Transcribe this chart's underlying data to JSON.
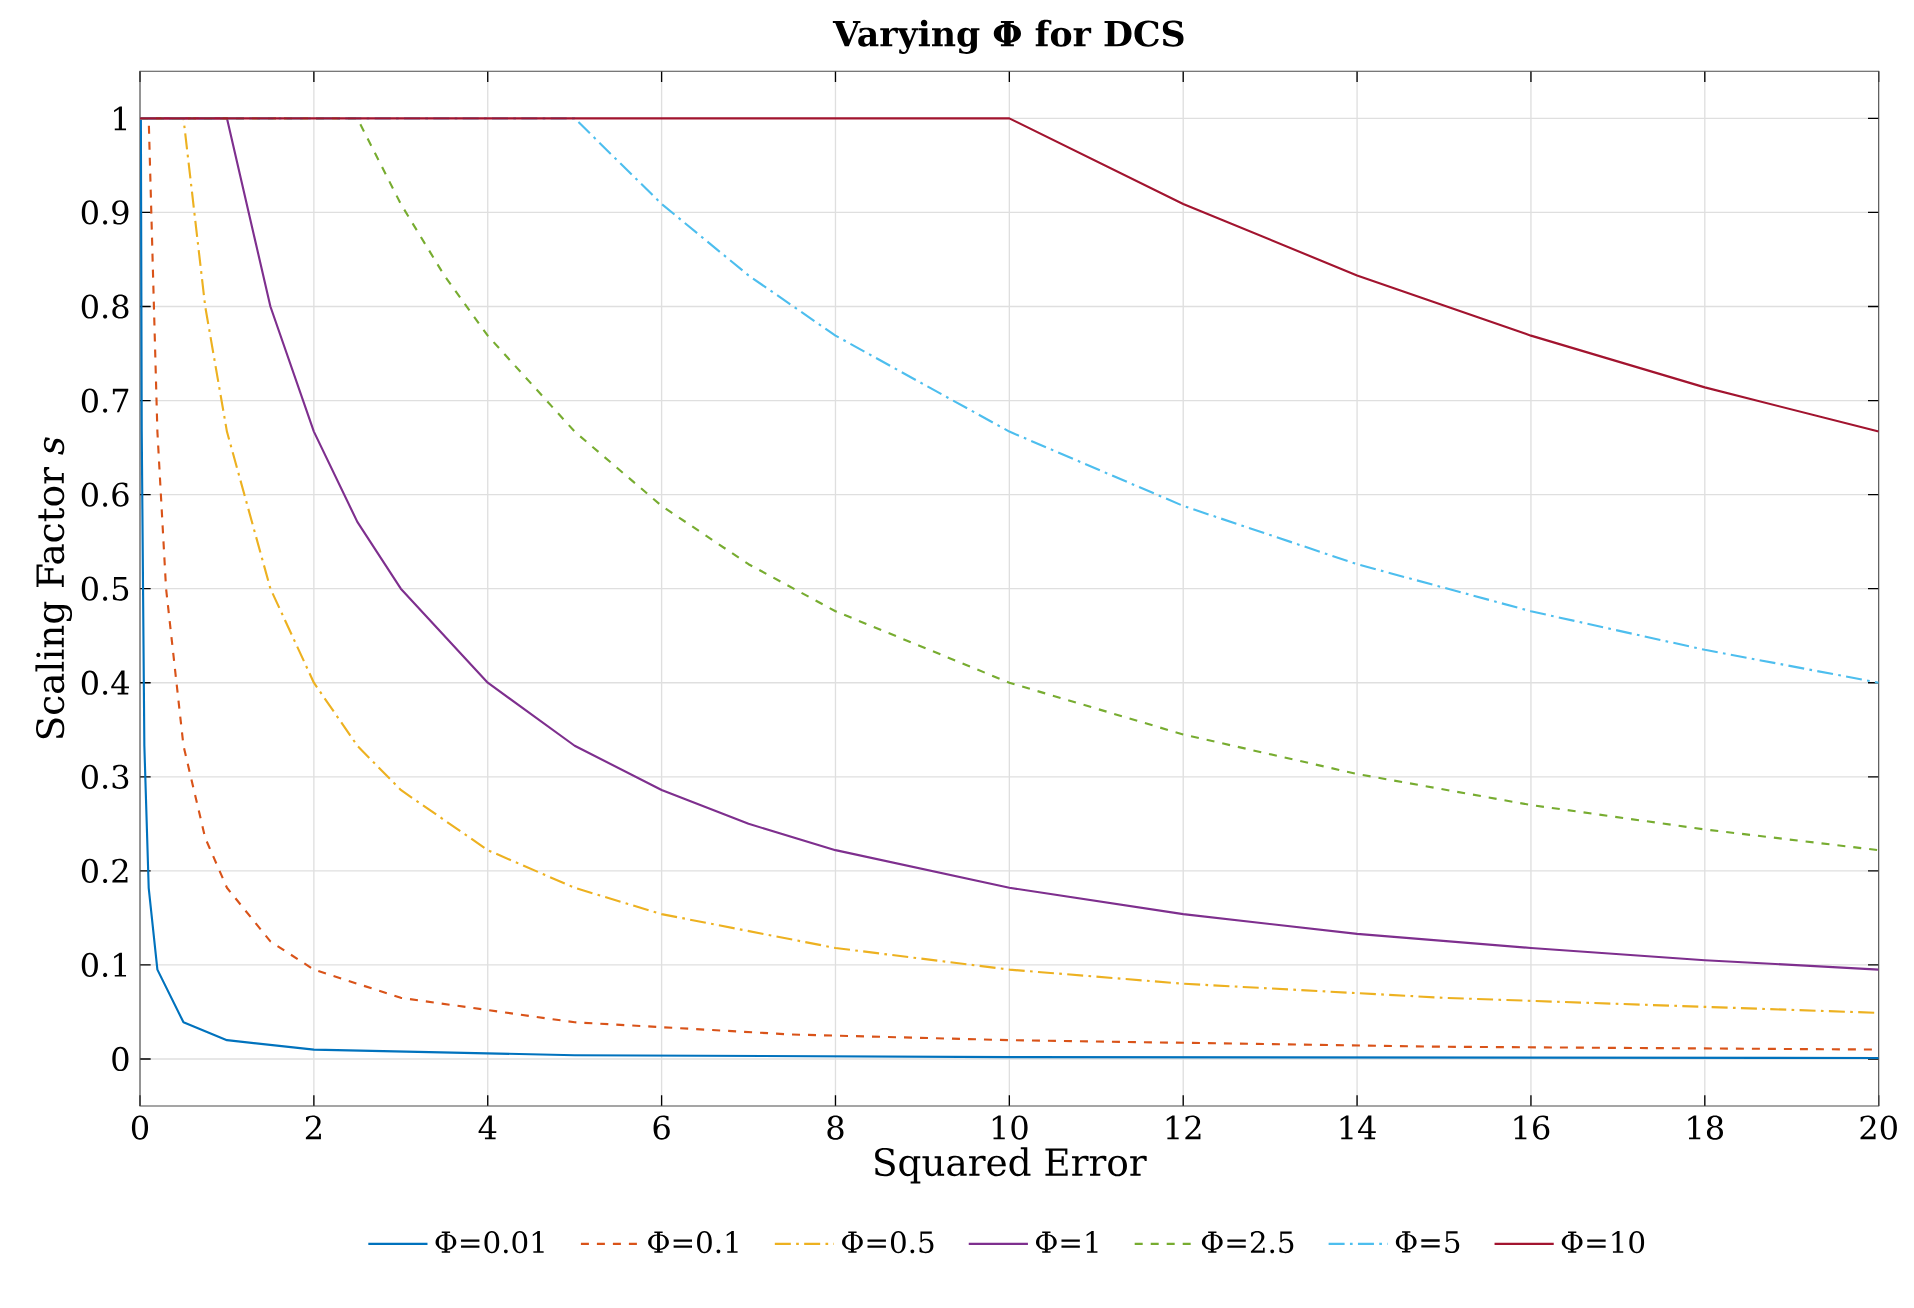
{
  "chart_data": {
    "type": "line",
    "title": "**Varying Φ for DCS**",
    "xlabel": "Squared Error",
    "ylabel": "Scaling Factor *s*",
    "xlim": [
      0,
      20
    ],
    "ylim": [
      -0.05,
      1.05
    ],
    "xticks": [
      0,
      2,
      4,
      6,
      8,
      10,
      12,
      14,
      16,
      18,
      20
    ],
    "yticks": [
      0,
      0.1,
      0.2,
      0.3,
      0.4,
      0.5,
      0.6,
      0.7,
      0.8,
      0.9,
      1
    ],
    "grid": true,
    "legend": "bottom",
    "marker": "none",
    "series": [
      {
        "name": "Φ=0.01",
        "color": "#0072bd",
        "line_style": "solid",
        "x": [
          0,
          0.01,
          0.02,
          0.05,
          0.1,
          0.2,
          0.5,
          1,
          2,
          5,
          10,
          20
        ],
        "values": [
          1,
          1,
          0.667,
          0.333,
          0.182,
          0.095,
          0.039,
          0.02,
          0.01,
          0.004,
          0.002,
          0.001
        ]
      },
      {
        "name": "Φ=0.1",
        "color": "#d95319",
        "line_style": "dashed",
        "x": [
          0,
          0.1,
          0.2,
          0.3,
          0.5,
          0.75,
          1,
          1.5,
          2,
          3,
          5,
          7.5,
          10,
          15,
          20
        ],
        "values": [
          1,
          1,
          0.667,
          0.5,
          0.333,
          0.235,
          0.182,
          0.125,
          0.095,
          0.065,
          0.039,
          0.026,
          0.02,
          0.013,
          0.01
        ]
      },
      {
        "name": "Φ=0.5",
        "color": "#edb120",
        "line_style": "dashdot",
        "x": [
          0,
          0.5,
          0.75,
          1,
          1.5,
          2,
          2.5,
          3,
          4,
          5,
          6,
          8,
          10,
          12,
          15,
          20
        ],
        "values": [
          1,
          1,
          0.8,
          0.667,
          0.5,
          0.4,
          0.333,
          0.286,
          0.222,
          0.182,
          0.154,
          0.118,
          0.095,
          0.08,
          0.065,
          0.049
        ]
      },
      {
        "name": "Φ=1",
        "color": "#7e2f8e",
        "line_style": "solid",
        "x": [
          0,
          1,
          1.5,
          2,
          2.5,
          3,
          4,
          5,
          6,
          7,
          8,
          10,
          12,
          14,
          16,
          18,
          20
        ],
        "values": [
          1,
          1,
          0.8,
          0.667,
          0.571,
          0.5,
          0.4,
          0.333,
          0.286,
          0.25,
          0.222,
          0.182,
          0.154,
          0.133,
          0.118,
          0.105,
          0.095
        ]
      },
      {
        "name": "Φ=2.5",
        "color": "#77ac30",
        "line_style": "dashed",
        "x": [
          0,
          2.5,
          3,
          3.5,
          4,
          5,
          6,
          7,
          8,
          10,
          12,
          14,
          16,
          18,
          20
        ],
        "values": [
          1,
          1,
          0.909,
          0.833,
          0.769,
          0.667,
          0.588,
          0.526,
          0.476,
          0.4,
          0.345,
          0.303,
          0.27,
          0.244,
          0.222
        ]
      },
      {
        "name": "Φ=5",
        "color": "#4dbeee",
        "line_style": "dashdot",
        "x": [
          0,
          5,
          6,
          7,
          8,
          10,
          12,
          14,
          16,
          18,
          20
        ],
        "values": [
          1,
          1,
          0.909,
          0.833,
          0.769,
          0.667,
          0.588,
          0.526,
          0.476,
          0.435,
          0.4
        ]
      },
      {
        "name": "Φ=10",
        "color": "#a2142f",
        "line_style": "solid",
        "x": [
          0,
          10,
          12,
          14,
          16,
          18,
          20
        ],
        "values": [
          1,
          1,
          0.909,
          0.833,
          0.769,
          0.714,
          0.667
        ]
      }
    ]
  }
}
